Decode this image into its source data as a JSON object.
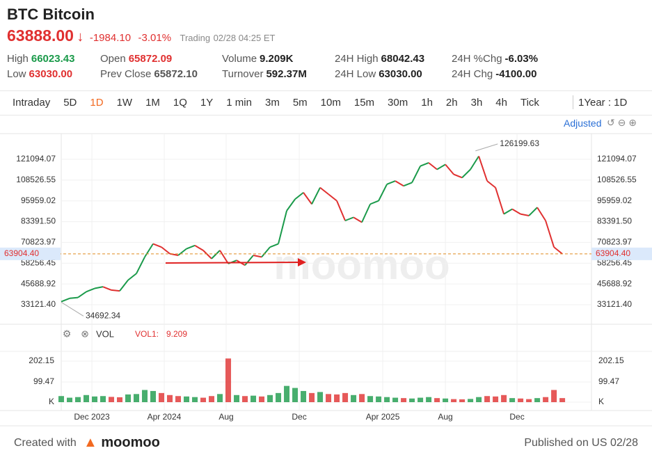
{
  "header": {
    "symbol": "BTC",
    "name": "Bitcoin",
    "price": "63888.00",
    "change": "-1984.10",
    "change_pct": "-3.01%",
    "status": "Trading",
    "time": "02/28 04:25 ET"
  },
  "stats": [
    [
      {
        "label": "High",
        "value": "66023.43",
        "color": "#1a9a4a"
      },
      {
        "label": "Low",
        "value": "63030.00",
        "color": "#e03030"
      }
    ],
    [
      {
        "label": "Open",
        "value": "65872.09",
        "color": "#e03030"
      },
      {
        "label": "Prev Close",
        "value": "65872.10",
        "color": "#555555"
      }
    ],
    [
      {
        "label": "Volume",
        "value": "9.209K",
        "color": "#222222"
      },
      {
        "label": "Turnover",
        "value": "592.37M",
        "color": "#222222"
      }
    ],
    [
      {
        "label": "24H High",
        "value": "68042.43",
        "color": "#222222"
      },
      {
        "label": "24H Low",
        "value": "63030.00",
        "color": "#222222"
      }
    ],
    [
      {
        "label": "24H %Chg",
        "value": "-6.03%",
        "color": "#222222"
      },
      {
        "label": "24H Chg",
        "value": "-4100.00",
        "color": "#222222"
      }
    ]
  ],
  "tabs": [
    "Intraday",
    "5D",
    "1D",
    "1W",
    "1M",
    "1Q",
    "1Y",
    "1 min",
    "3m",
    "5m",
    "10m",
    "15m",
    "30m",
    "1h",
    "2h",
    "3h",
    "4h",
    "Tick"
  ],
  "active_tab": 2,
  "period": "1Year : 1D",
  "adjusted": "Adjusted",
  "chart_data": {
    "type": "line",
    "values": [
      35000,
      37000,
      37500,
      41000,
      43000,
      44000,
      42000,
      41500,
      48000,
      52000,
      62000,
      70000,
      68000,
      64000,
      63000,
      67000,
      69000,
      66000,
      61000,
      66000,
      58000,
      60000,
      57000,
      63000,
      62000,
      68000,
      70000,
      90000,
      97000,
      101000,
      94000,
      104000,
      100000,
      96000,
      84000,
      86000,
      83000,
      94000,
      96000,
      106000,
      108000,
      105000,
      107000,
      117000,
      119000,
      115000,
      118000,
      112000,
      110000,
      115000,
      123000,
      108000,
      104000,
      88000,
      91000,
      88000,
      87000,
      92000,
      84000,
      68000,
      63888
    ],
    "up_color": "#1a9a4a",
    "down_color": "#e03030",
    "xlim": [
      0,
      60
    ],
    "xticks": [
      {
        "value": 3.67,
        "label": "Dec 2023"
      },
      {
        "value": 12.33,
        "label": "Apr 2024"
      },
      {
        "value": 19.75,
        "label": "Aug"
      },
      {
        "value": 28.5,
        "label": "Dec"
      },
      {
        "value": 38.5,
        "label": "Apr 2025"
      },
      {
        "value": 46,
        "label": "Aug"
      },
      {
        "value": 54.58,
        "label": "Dec"
      }
    ],
    "ylim": [
      21336,
      136668
    ],
    "yticks": [
      {
        "value": 33121.4,
        "label": "33121.40"
      },
      {
        "value": 45688.92,
        "label": "45688.92"
      },
      {
        "value": 58256.45,
        "label": "58256.45"
      },
      {
        "value": 70823.97,
        "label": "70823.97"
      },
      {
        "value": 83391.5,
        "label": "83391.50"
      },
      {
        "value": 95959.02,
        "label": "95959.02"
      },
      {
        "value": 108526.55,
        "label": "108526.55"
      },
      {
        "value": 121094.07,
        "label": "121094.07"
      }
    ],
    "current_price": {
      "value": 63904.4,
      "label": "63904.40"
    },
    "annotations": [
      {
        "x": 49.6,
        "value": 126199.63,
        "label": "126199.63"
      },
      {
        "x": 0,
        "value": 34692.34,
        "label": "34692.34"
      }
    ],
    "watermark": "moomoo",
    "volume": {
      "title": "VOL",
      "legend_label": "VOL1:",
      "legend_value": "9.209",
      "values": [
        30,
        22,
        25,
        35,
        28,
        30,
        26,
        24,
        38,
        40,
        60,
        55,
        45,
        35,
        30,
        28,
        25,
        22,
        30,
        40,
        215,
        35,
        30,
        32,
        28,
        35,
        45,
        80,
        70,
        55,
        45,
        50,
        40,
        38,
        45,
        35,
        40,
        30,
        28,
        25,
        22,
        20,
        18,
        22,
        25,
        20,
        18,
        15,
        14,
        16,
        25,
        30,
        28,
        35,
        20,
        18,
        15,
        20,
        25,
        60,
        20
      ],
      "ylim": [
        0,
        250
      ],
      "yticks": [
        {
          "value": 0,
          "label": "K"
        },
        99.47,
        202.15
      ]
    }
  },
  "footer": {
    "created": "Created with",
    "brand": "moomoo",
    "published": "Published on US 02/28"
  }
}
